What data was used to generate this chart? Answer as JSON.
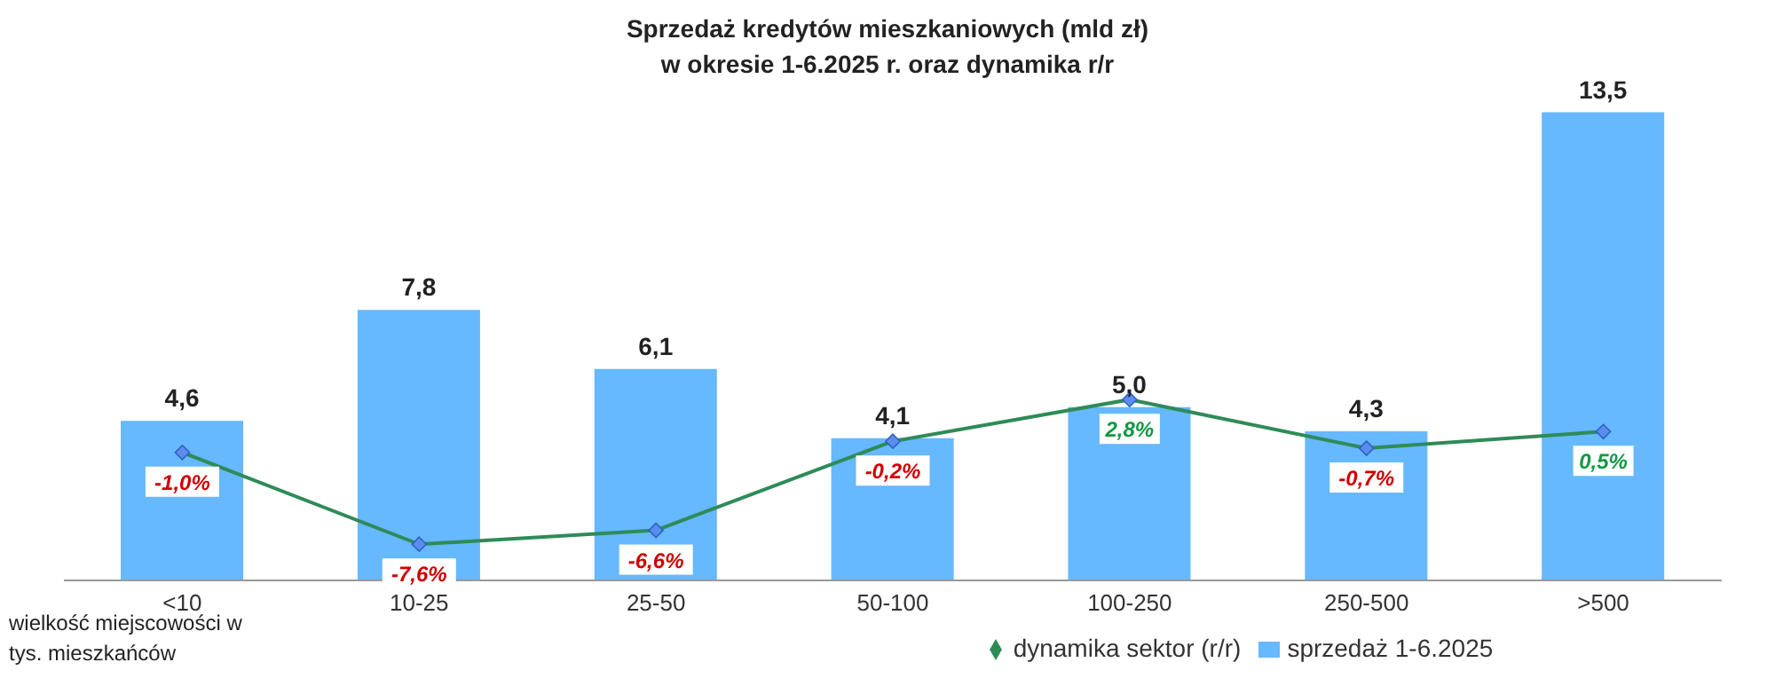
{
  "chart_data": {
    "type": "bar",
    "title": "Sprzedaż kredytów mieszkaniowych (mld zł)\nw okresie 1-6.2025 r. oraz dynamika r/r",
    "xlabel": "wielkość miejscowości w tys. mieszkańców",
    "categories": [
      "<10",
      "10-25",
      "25-50",
      "50-100",
      "100-250",
      "250-500",
      ">500"
    ],
    "series": [
      {
        "name": "sprzedaż 1-6.2025",
        "color": "#66b8ff",
        "values": [
          4.6,
          7.8,
          6.1,
          4.1,
          5.0,
          4.3,
          13.5
        ],
        "value_labels": [
          "4,6",
          "7,8",
          "6,1",
          "4,1",
          "5,0",
          "4,3",
          "13,5"
        ]
      },
      {
        "name": "dynamika sektor (r/r)",
        "type": "line",
        "axis": "y2",
        "color": "#2e8b57",
        "marker": "diamond",
        "values": [
          -1.0,
          -7.6,
          -6.6,
          -0.2,
          2.8,
          -0.7,
          0.5
        ],
        "value_labels": [
          "-1,0%",
          "-7,6%",
          "-6,6%",
          "-0,2%",
          "2,8%",
          "-0,7%",
          "0,5%"
        ]
      }
    ],
    "legend": "bottom"
  }
}
